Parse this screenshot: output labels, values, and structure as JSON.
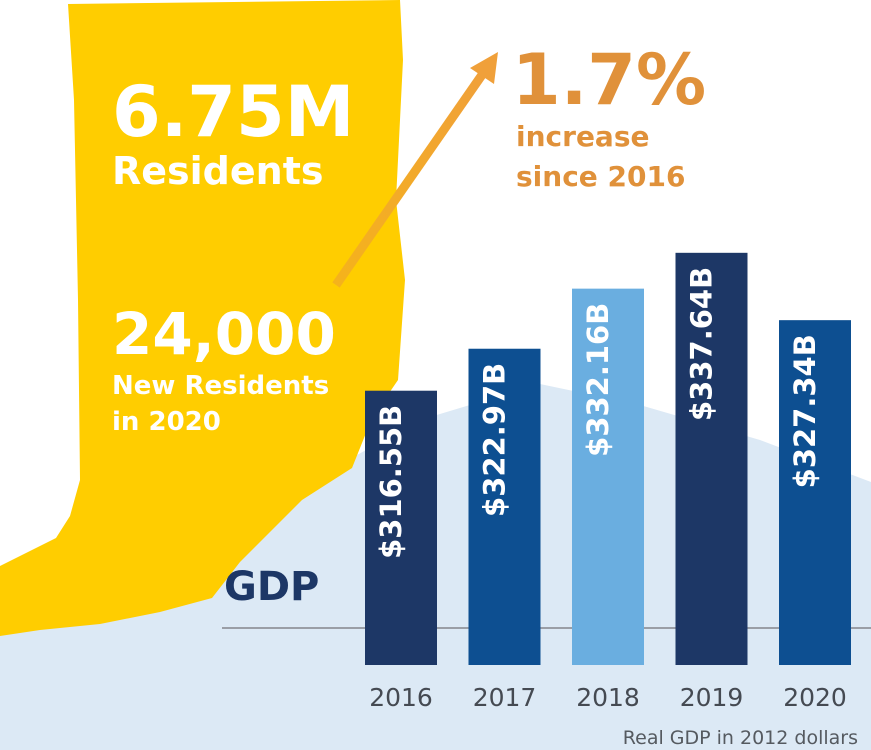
{
  "chart_data": {
    "type": "bar",
    "title": "GDP",
    "note": "Real GDP in 2012 dollars",
    "categories": [
      "2016",
      "2017",
      "2018",
      "2019",
      "2020"
    ],
    "values": [
      316.55,
      322.97,
      332.16,
      337.64,
      327.34
    ],
    "value_labels": [
      "$316.55B",
      "$322.97B",
      "$332.16B",
      "$337.64B",
      "$327.34B"
    ],
    "colors": [
      "#1d3766",
      "#0d4f91",
      "#6aaee0",
      "#1d3766",
      "#0d4f91"
    ],
    "ylim": [
      274.6,
      350
    ],
    "annotations": [
      "6.75M",
      "Residents",
      "24,000",
      "New Residents",
      "in 2020",
      "1.7%",
      "increase",
      "since 2016"
    ]
  }
}
